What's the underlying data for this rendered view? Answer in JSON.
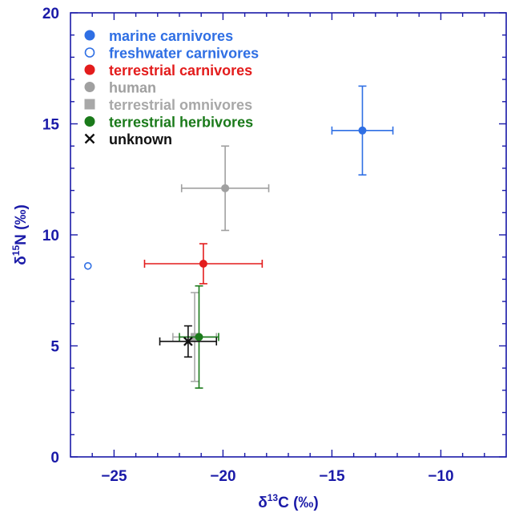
{
  "chart_data": {
    "type": "scatter",
    "xlabel": {
      "prefix": "δ",
      "sup": "13",
      "main": "C (‰)"
    },
    "ylabel": {
      "prefix": "δ",
      "sup": "15",
      "main": "N (‰)"
    },
    "xlim": [
      -27,
      -7
    ],
    "ylim": [
      0,
      20
    ],
    "xticks": [
      -25,
      -20,
      -15,
      -10
    ],
    "xtick_labels": [
      "−25",
      "−20",
      "−15",
      "−10"
    ],
    "yticks": [
      0,
      5,
      10,
      15,
      20
    ],
    "ytick_labels": [
      "0",
      "5",
      "10",
      "15",
      "20"
    ],
    "grid": false,
    "legend_position": "top-left",
    "axis_color": "#1a1aa8",
    "series": [
      {
        "name": "marine carnivores",
        "color": "#2f6fe4",
        "marker": "filled-circle",
        "points": [
          {
            "x": -13.6,
            "y": 14.7,
            "xerr": 1.4,
            "yerr": 2.0
          }
        ]
      },
      {
        "name": "freshwater carnivores",
        "color": "#2f6fe4",
        "marker": "open-circle",
        "points": [
          {
            "x": -26.2,
            "y": 8.6
          }
        ]
      },
      {
        "name": "terrestrial carnivores",
        "color": "#e31c1c",
        "marker": "filled-circle",
        "points": [
          {
            "x": -20.9,
            "y": 8.7,
            "xerr": 2.7,
            "yerr": 0.9
          }
        ]
      },
      {
        "name": "human",
        "color": "#a0a0a0",
        "marker": "filled-circle",
        "points": [
          {
            "x": -19.9,
            "y": 12.1,
            "xerr": 2.0,
            "yerr": 1.9
          }
        ]
      },
      {
        "name": "terrestrial omnivores",
        "color": "#a8a8a8",
        "marker": "filled-square",
        "points": [
          {
            "x": -21.3,
            "y": 5.4,
            "xerr": 1.0,
            "yerr": 2.0
          }
        ]
      },
      {
        "name": "terrestrial herbivores",
        "color": "#1a7a1a",
        "marker": "filled-circle",
        "points": [
          {
            "x": -21.1,
            "y": 5.4,
            "xerr": 0.9,
            "yerr": 2.3
          }
        ]
      },
      {
        "name": "unknown",
        "color": "#111111",
        "marker": "x",
        "points": [
          {
            "x": -21.6,
            "y": 5.2,
            "xerr": 1.3,
            "yerr": 0.7
          }
        ]
      }
    ]
  }
}
